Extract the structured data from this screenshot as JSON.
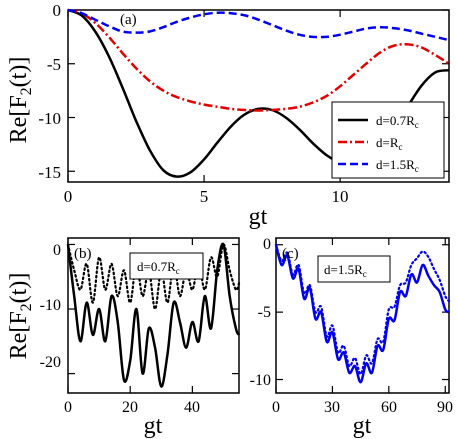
{
  "chart_data": [
    {
      "panel_label": "(a)",
      "type": "line",
      "xlabel": "gt",
      "ylabel": "Re[F2(t)]",
      "xlim": [
        0,
        14
      ],
      "ylim": [
        -16,
        0
      ],
      "xticks": [
        "0",
        "5",
        "10"
      ],
      "yticks": [
        "0",
        "-5",
        "-10",
        "-15"
      ],
      "legend_position": "bottom-right",
      "series": [
        {
          "name": "d=0.7Rc",
          "label_main": "d=0.7R",
          "label_sub": "c",
          "color": "#000000",
          "dash": "solid",
          "x": [
            0,
            0.5,
            1,
            1.5,
            2,
            2.5,
            3,
            3.5,
            4,
            4.5,
            5,
            5.5,
            6,
            6.5,
            7,
            7.5,
            8,
            8.5,
            9,
            9.5,
            10,
            10.5,
            11,
            11.5,
            12,
            12.5,
            13,
            13.5,
            14
          ],
          "y": [
            0,
            -0.5,
            -2.0,
            -4.3,
            -7.2,
            -10.3,
            -13.0,
            -14.9,
            -15.5,
            -15.1,
            -13.9,
            -12.3,
            -10.8,
            -9.7,
            -9.2,
            -9.3,
            -10.0,
            -11.1,
            -12.4,
            -13.5,
            -14.2,
            -14.3,
            -13.8,
            -12.6,
            -10.9,
            -8.9,
            -7.0,
            -5.8,
            -5.6
          ]
        },
        {
          "name": "d=Rc",
          "label_main": "d=R",
          "label_sub": "c",
          "color": "#e00000",
          "dash": "dashdot",
          "x": [
            0,
            0.5,
            1,
            1.5,
            2,
            2.5,
            3,
            3.5,
            4,
            4.5,
            5,
            5.5,
            6,
            6.5,
            7,
            7.5,
            8,
            8.5,
            9,
            9.5,
            10,
            10.5,
            11,
            11.5,
            12,
            12.5,
            13,
            13.5,
            14
          ],
          "y": [
            0,
            -0.3,
            -1.2,
            -2.5,
            -4.0,
            -5.4,
            -6.6,
            -7.5,
            -8.1,
            -8.5,
            -8.8,
            -9.0,
            -9.2,
            -9.3,
            -9.35,
            -9.3,
            -9.2,
            -9.0,
            -8.6,
            -8.0,
            -7.1,
            -6.0,
            -4.9,
            -3.9,
            -3.3,
            -3.2,
            -3.5,
            -4.2,
            -5.0
          ]
        },
        {
          "name": "d=1.5Rc",
          "label_main": "d=1.5R",
          "label_sub": "c",
          "color": "#0000ee",
          "dash": "dashed",
          "x": [
            0,
            0.5,
            1,
            1.5,
            2,
            2.5,
            3,
            3.5,
            4,
            4.5,
            5,
            5.5,
            6,
            6.5,
            7,
            7.5,
            8,
            8.5,
            9,
            9.5,
            10,
            10.5,
            11,
            11.5,
            12,
            12.5,
            13,
            13.5,
            14
          ],
          "y": [
            0,
            -0.3,
            -0.9,
            -1.5,
            -2.0,
            -2.1,
            -2.0,
            -1.6,
            -1.1,
            -0.7,
            -0.4,
            -0.25,
            -0.3,
            -0.5,
            -0.9,
            -1.4,
            -1.9,
            -2.3,
            -2.5,
            -2.5,
            -2.3,
            -2.0,
            -1.7,
            -1.6,
            -1.7,
            -1.9,
            -2.2,
            -2.5,
            -2.8
          ]
        }
      ]
    },
    {
      "panel_label": "(b)",
      "type": "line",
      "xlabel": "gt",
      "ylabel": "Re[F2(t)]",
      "xlim": [
        0,
        55
      ],
      "ylim": [
        -23,
        1
      ],
      "xticks": [
        "0",
        "20",
        "40"
      ],
      "yticks": [
        "0",
        "-10",
        "-20"
      ],
      "legend_label_main": "d=0.7R",
      "legend_label_sub": "c",
      "series": [
        {
          "name": "solid",
          "color": "#000000",
          "dash": "solid",
          "x": [
            0,
            2,
            4,
            6,
            8,
            10,
            12,
            14,
            16,
            18,
            20,
            22,
            24,
            26,
            28,
            30,
            32,
            34,
            36,
            38,
            40,
            42,
            44,
            46,
            48,
            50,
            52,
            54,
            55
          ],
          "y": [
            0,
            -8,
            -15,
            -9,
            -14,
            -10,
            -15,
            -8,
            -12,
            -21,
            -18,
            -10,
            -20,
            -13,
            -16,
            -22,
            -17,
            -9,
            -12,
            -16,
            -12,
            -15,
            -8,
            -13,
            -4,
            0,
            -8,
            -13,
            -14
          ]
        },
        {
          "name": "dotted",
          "color": "#000000",
          "dash": "dotted",
          "x": [
            0,
            2,
            4,
            6,
            8,
            10,
            12,
            14,
            16,
            18,
            20,
            22,
            24,
            26,
            28,
            30,
            32,
            34,
            36,
            38,
            40,
            42,
            44,
            46,
            48,
            50,
            52,
            54,
            55
          ],
          "y": [
            0,
            -4,
            -7,
            -3,
            -9,
            -2,
            -7,
            -3,
            -8,
            -4,
            -9,
            -3,
            -8,
            -4,
            -10,
            -4,
            -9,
            -3,
            -8,
            -4,
            -7,
            -3,
            -7,
            -2,
            -5,
            0,
            -4,
            -7,
            -6
          ]
        }
      ]
    },
    {
      "panel_label": "(c)",
      "type": "line",
      "xlabel": "gt",
      "ylabel": "",
      "xlim": [
        0,
        92
      ],
      "ylim": [
        -11,
        0.5
      ],
      "xticks": [
        "0",
        "30",
        "60",
        "90"
      ],
      "yticks": [
        "0",
        "-5",
        "-10"
      ],
      "legend_label_main": "d=1.5R",
      "legend_label_sub": "c",
      "series": [
        {
          "name": "solid",
          "color": "#0000ee",
          "dash": "solid",
          "x": [
            0,
            3,
            6,
            9,
            12,
            15,
            18,
            21,
            24,
            27,
            30,
            33,
            36,
            39,
            42,
            45,
            48,
            51,
            54,
            57,
            60,
            63,
            66,
            69,
            72,
            75,
            78,
            81,
            84,
            87,
            90,
            92
          ],
          "y": [
            0,
            -1.5,
            -0.8,
            -2.5,
            -1.8,
            -4.0,
            -3.2,
            -5.5,
            -5.0,
            -7.2,
            -6.5,
            -8.5,
            -8.0,
            -9.5,
            -9.0,
            -10.2,
            -8.8,
            -9.5,
            -7.5,
            -7.8,
            -5.5,
            -5.6,
            -3.5,
            -3.8,
            -2.2,
            -2.8,
            -1.5,
            -2.3,
            -3.0,
            -3.5,
            -4.8,
            -5.0
          ]
        },
        {
          "name": "dotted",
          "color": "#0000ee",
          "dash": "dotted",
          "x": [
            0,
            3,
            6,
            9,
            12,
            15,
            18,
            21,
            24,
            27,
            30,
            33,
            36,
            39,
            42,
            45,
            48,
            51,
            54,
            57,
            60,
            63,
            66,
            69,
            72,
            75,
            78,
            81,
            84,
            87,
            90,
            92
          ],
          "y": [
            0,
            -1.2,
            -0.6,
            -2.2,
            -1.5,
            -3.6,
            -3.0,
            -5.0,
            -4.6,
            -6.8,
            -6.0,
            -8.0,
            -7.5,
            -9.0,
            -8.4,
            -9.6,
            -8.2,
            -8.8,
            -7.0,
            -7.2,
            -4.8,
            -4.6,
            -3.0,
            -2.8,
            -1.5,
            -1.0,
            -0.5,
            -0.9,
            -1.8,
            -2.6,
            -3.8,
            -4.2
          ]
        }
      ]
    }
  ]
}
